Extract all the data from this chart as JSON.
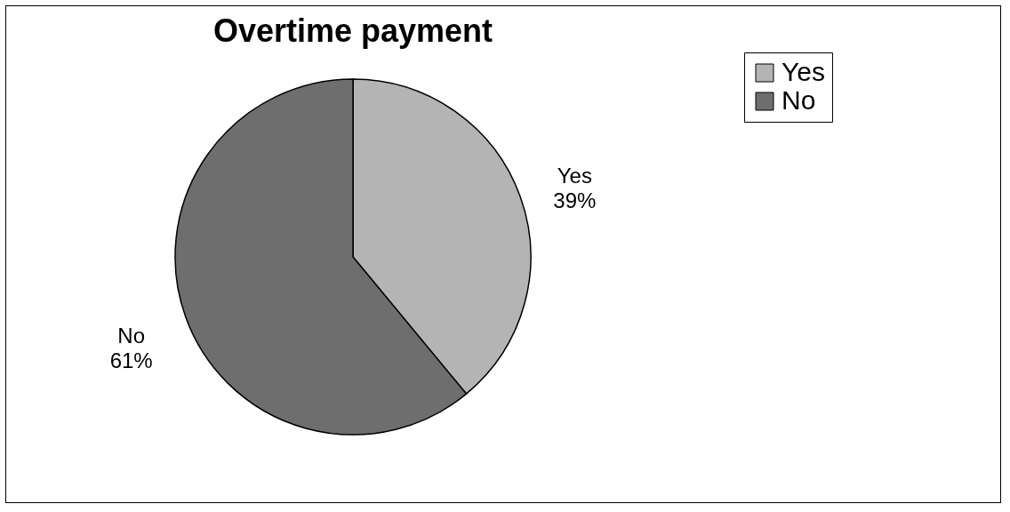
{
  "chart_data": {
    "type": "pie",
    "title": "Overtime payment",
    "categories": [
      "Yes",
      "No"
    ],
    "values": [
      39,
      61
    ],
    "colors": [
      "#b4b4b4",
      "#6e6e6e"
    ],
    "value_labels": [
      "39%",
      "61%"
    ],
    "legend": "right"
  }
}
